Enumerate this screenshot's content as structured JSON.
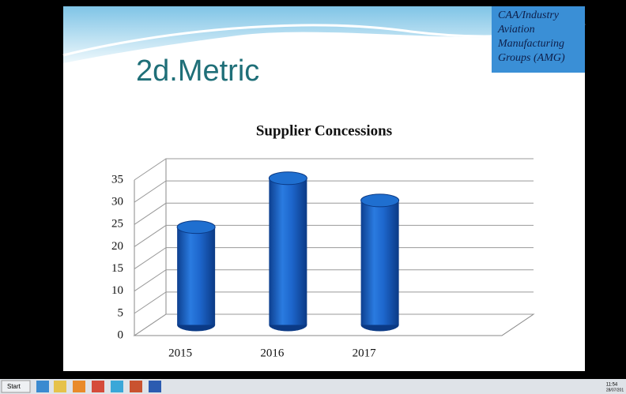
{
  "slide": {
    "title": "2d.Metric",
    "badge": [
      "CAA/Industry",
      "Aviation",
      "Manufacturing",
      "Groups (AMG)"
    ]
  },
  "chart_data": {
    "type": "bar",
    "title": "Supplier Concessions",
    "categories": [
      "2015",
      "2016",
      "2017",
      null
    ],
    "values": [
      22,
      33,
      28,
      null
    ],
    "color": "#1f6fd0",
    "ylim": [
      0,
      35
    ],
    "yticks": [
      0,
      5,
      10,
      15,
      20,
      25,
      30,
      35
    ],
    "grid": true
  },
  "taskbar": {
    "start": "Start",
    "clock": "11:54",
    "date": "28/07/201"
  }
}
